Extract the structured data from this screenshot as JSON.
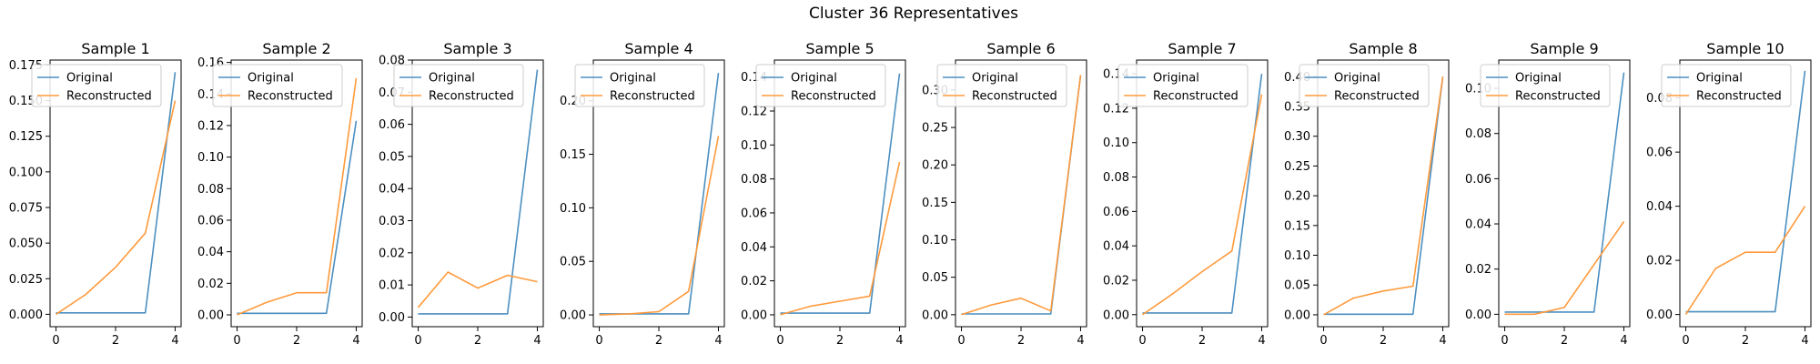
{
  "figure": {
    "title": "Cluster 36 Representatives"
  },
  "colors": {
    "original": "#4c8fc0",
    "reconstructed": "#ff9a3c"
  },
  "chart_data": [
    {
      "type": "line",
      "title": "Sample 1",
      "x": [
        0,
        1,
        2,
        3,
        4
      ],
      "xticks": [
        0,
        2,
        4
      ],
      "ylim": [
        -0.0087,
        0.1785
      ],
      "yticks": [
        "0.000",
        "0.025",
        "0.050",
        "0.075",
        "0.100",
        "0.125",
        "0.150",
        "0.175"
      ],
      "legend": "upper-left",
      "series": [
        {
          "name": "Original",
          "values": [
            0.001,
            0.001,
            0.001,
            0.001,
            0.17
          ]
        },
        {
          "name": "Reconstructed",
          "values": [
            0.0,
            0.014,
            0.033,
            0.057,
            0.15
          ]
        }
      ]
    },
    {
      "type": "line",
      "title": "Sample 2",
      "x": [
        0,
        1,
        2,
        3,
        4
      ],
      "xticks": [
        0,
        2,
        4
      ],
      "ylim": [
        -0.0075,
        0.1615
      ],
      "yticks": [
        "0.00",
        "0.02",
        "0.04",
        "0.06",
        "0.08",
        "0.10",
        "0.12",
        "0.14",
        "0.16"
      ],
      "legend": "upper-left",
      "series": [
        {
          "name": "Original",
          "values": [
            0.001,
            0.001,
            0.001,
            0.001,
            0.123
          ]
        },
        {
          "name": "Reconstructed",
          "values": [
            0.0,
            0.008,
            0.014,
            0.014,
            0.15
          ]
        }
      ]
    },
    {
      "type": "line",
      "title": "Sample 3",
      "x": [
        0,
        1,
        2,
        3,
        4
      ],
      "xticks": [
        0,
        2,
        4
      ],
      "ylim": [
        -0.003,
        0.08
      ],
      "yticks": [
        "0.00",
        "0.01",
        "0.02",
        "0.03",
        "0.04",
        "0.05",
        "0.06",
        "0.07",
        "0.08"
      ],
      "legend": "upper-left",
      "series": [
        {
          "name": "Original",
          "values": [
            0.001,
            0.001,
            0.001,
            0.001,
            0.077
          ]
        },
        {
          "name": "Reconstructed",
          "values": [
            0.003,
            0.014,
            0.009,
            0.013,
            0.011
          ]
        }
      ]
    },
    {
      "type": "line",
      "title": "Sample 4",
      "x": [
        0,
        1,
        2,
        3,
        4
      ],
      "xticks": [
        0,
        2,
        4
      ],
      "ylim": [
        -0.011,
        0.238
      ],
      "yticks": [
        "0.00",
        "0.05",
        "0.10",
        "0.15",
        "0.20"
      ],
      "legend": "upper-left",
      "series": [
        {
          "name": "Original",
          "values": [
            0.001,
            0.001,
            0.001,
            0.001,
            0.226
          ]
        },
        {
          "name": "Reconstructed",
          "values": [
            0.0,
            0.001,
            0.003,
            0.022,
            0.167
          ]
        }
      ]
    },
    {
      "type": "line",
      "title": "Sample 5",
      "x": [
        0,
        1,
        2,
        3,
        4
      ],
      "xticks": [
        0,
        2,
        4
      ],
      "ylim": [
        -0.007,
        0.15
      ],
      "yticks": [
        "0.00",
        "0.02",
        "0.04",
        "0.06",
        "0.08",
        "0.10",
        "0.12",
        "0.14"
      ],
      "legend": "upper-left",
      "series": [
        {
          "name": "Original",
          "values": [
            0.001,
            0.001,
            0.001,
            0.001,
            0.142
          ]
        },
        {
          "name": "Reconstructed",
          "values": [
            0.0,
            0.005,
            0.008,
            0.011,
            0.09
          ]
        }
      ]
    },
    {
      "type": "line",
      "title": "Sample 6",
      "x": [
        0,
        1,
        2,
        3,
        4
      ],
      "xticks": [
        0,
        2,
        4
      ],
      "ylim": [
        -0.016,
        0.34
      ],
      "yticks": [
        "0.00",
        "0.05",
        "0.10",
        "0.15",
        "0.20",
        "0.25",
        "0.30"
      ],
      "legend": "upper-left",
      "series": [
        {
          "name": "Original",
          "values": [
            0.001,
            0.001,
            0.001,
            0.001,
            0.32
          ]
        },
        {
          "name": "Reconstructed",
          "values": [
            0.0,
            0.013,
            0.022,
            0.005,
            0.32
          ]
        }
      ]
    },
    {
      "type": "line",
      "title": "Sample 7",
      "x": [
        0,
        1,
        2,
        3,
        4
      ],
      "xticks": [
        0,
        2,
        4
      ],
      "ylim": [
        -0.007,
        0.148
      ],
      "yticks": [
        "0.00",
        "0.02",
        "0.04",
        "0.06",
        "0.08",
        "0.10",
        "0.12",
        "0.14"
      ],
      "legend": "upper-left",
      "series": [
        {
          "name": "Original",
          "values": [
            0.001,
            0.001,
            0.001,
            0.001,
            0.14
          ]
        },
        {
          "name": "Reconstructed",
          "values": [
            0.0,
            0.012,
            0.025,
            0.037,
            0.128
          ]
        }
      ]
    },
    {
      "type": "line",
      "title": "Sample 8",
      "x": [
        0,
        1,
        2,
        3,
        4
      ],
      "xticks": [
        0,
        2,
        4
      ],
      "ylim": [
        -0.02,
        0.428
      ],
      "yticks": [
        "0.00",
        "0.05",
        "0.10",
        "0.15",
        "0.20",
        "0.25",
        "0.30",
        "0.35",
        "0.40"
      ],
      "legend": "upper-left",
      "series": [
        {
          "name": "Original",
          "values": [
            0.001,
            0.001,
            0.001,
            0.001,
            0.4
          ]
        },
        {
          "name": "Reconstructed",
          "values": [
            0.0,
            0.028,
            0.04,
            0.048,
            0.4
          ]
        }
      ]
    },
    {
      "type": "line",
      "title": "Sample 9",
      "x": [
        0,
        1,
        2,
        3,
        4
      ],
      "xticks": [
        0,
        2,
        4
      ],
      "ylim": [
        -0.0055,
        0.1125
      ],
      "yticks": [
        "0.00",
        "0.02",
        "0.04",
        "0.06",
        "0.08",
        "0.10"
      ],
      "legend": "upper-left",
      "series": [
        {
          "name": "Original",
          "values": [
            0.001,
            0.001,
            0.001,
            0.001,
            0.107
          ]
        },
        {
          "name": "Reconstructed",
          "values": [
            0.0,
            0.0,
            0.003,
            0.022,
            0.041
          ]
        }
      ]
    },
    {
      "type": "line",
      "title": "Sample 10",
      "x": [
        0,
        1,
        2,
        3,
        4
      ],
      "xticks": [
        0,
        2,
        4
      ],
      "ylim": [
        -0.0045,
        0.094
      ],
      "yticks": [
        "0.00",
        "0.02",
        "0.04",
        "0.06",
        "0.08"
      ],
      "legend": "upper-left",
      "series": [
        {
          "name": "Original",
          "values": [
            0.001,
            0.001,
            0.001,
            0.001,
            0.09
          ]
        },
        {
          "name": "Reconstructed",
          "values": [
            0.0,
            0.017,
            0.023,
            0.023,
            0.04
          ]
        }
      ]
    }
  ]
}
